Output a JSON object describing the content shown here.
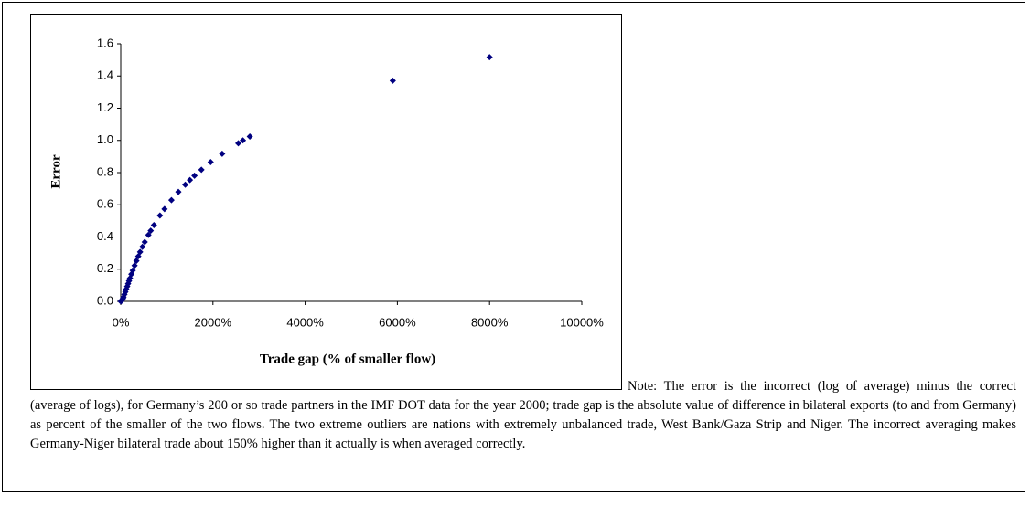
{
  "chart_data": {
    "type": "scatter",
    "x_label": "Trade gap (% of smaller flow)",
    "y_label": "Error",
    "color": "#000080",
    "series": [
      {
        "name": "Error",
        "color": "#000080",
        "x": [
          0,
          10,
          20,
          30,
          40,
          50,
          60,
          80,
          100,
          120,
          140,
          160,
          180,
          200,
          230,
          260,
          300,
          340,
          380,
          420,
          470,
          520,
          600,
          650,
          720,
          850,
          950,
          1100,
          1250,
          1400,
          1500,
          1600,
          1750,
          1950,
          2200,
          2550,
          2650,
          2800,
          5900,
          8000
        ],
        "values": [
          0,
          0.001,
          0.004,
          0.009,
          0.014,
          0.02,
          0.027,
          0.043,
          0.059,
          0.076,
          0.093,
          0.11,
          0.127,
          0.144,
          0.169,
          0.192,
          0.223,
          0.252,
          0.28,
          0.307,
          0.339,
          0.369,
          0.413,
          0.439,
          0.474,
          0.533,
          0.574,
          0.629,
          0.68,
          0.725,
          0.754,
          0.781,
          0.818,
          0.865,
          0.917,
          0.982,
          1.0,
          1.024,
          1.371,
          1.517
        ]
      }
    ],
    "xlim": [
      0,
      10000
    ],
    "xticks": [
      {
        "value": 0,
        "label": "0%"
      },
      {
        "value": 2000,
        "label": "2000%"
      },
      {
        "value": 4000,
        "label": "4000%"
      },
      {
        "value": 6000,
        "label": "6000%"
      },
      {
        "value": 8000,
        "label": "8000%"
      },
      {
        "value": 10000,
        "label": "10000%"
      }
    ],
    "ylim": [
      0,
      1.6
    ],
    "yticks": [
      {
        "value": 0,
        "label": "0.0"
      },
      0.2,
      0.4,
      0.6,
      0.8,
      {
        "value": 1,
        "label": "1.0"
      },
      1.2,
      1.4,
      1.6
    ],
    "grid": false,
    "note": "Note: The error is the incorrect (log of average) minus the correct (average of logs), for Germany’s 200 or so trade partners in the IMF DOT data for the year 2000; trade gap is the absolute value of difference in bilateral exports (to and from Germany) as percent of the smaller of the two flows. The two extreme outliers are nations with extremely unbalanced trade, West Bank/Gaza Strip and Niger. The incorrect averaging makes Germany-Niger bilateral trade about 150% higher than it actually is when averaged correctly."
  }
}
